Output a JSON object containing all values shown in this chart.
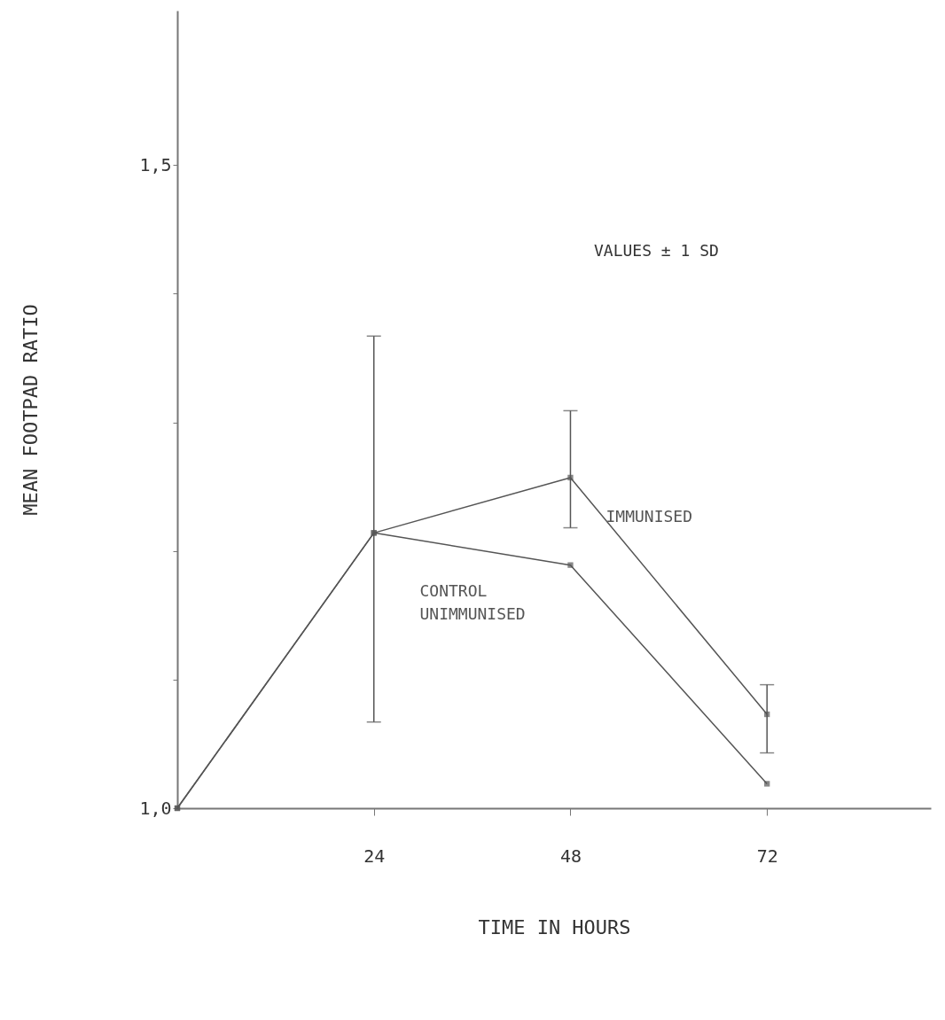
{
  "chart_data": {
    "type": "line",
    "xlabel": "TIME   IN   HOURS",
    "ylabel": "MEAN   FOOTPAD   RATIO",
    "x": [
      0,
      24,
      48,
      72
    ],
    "series": [
      {
        "name": "IMMUNISED",
        "color": "#555555",
        "values": [
          1.0,
          1.214,
          1.257,
          1.073
        ],
        "errors": [
          null,
          [
            1.067,
            1.367
          ],
          [
            1.218,
            1.309
          ],
          [
            1.043,
            1.096
          ]
        ]
      },
      {
        "name": "CONTROL\nUNIMMUNISED",
        "color": "#555555",
        "values": [
          1.0,
          1.214,
          1.189,
          1.019
        ]
      }
    ],
    "xlim": [
      0,
      92
    ],
    "xticks": [
      24,
      48,
      72
    ],
    "ylim": [
      1.0,
      1.62
    ],
    "yticks": [
      {
        "value": 1.0,
        "label": "1,0"
      },
      {
        "value": 1.1,
        "label": null
      },
      {
        "value": 1.2,
        "label": null
      },
      {
        "value": 1.3,
        "label": null
      },
      {
        "value": 1.4,
        "label": null
      },
      {
        "value": 1.5,
        "label": "1,5"
      }
    ],
    "annotations": [
      "VALUES ± 1 SD"
    ],
    "marker": "square",
    "line_style": "solid",
    "grid": false
  }
}
